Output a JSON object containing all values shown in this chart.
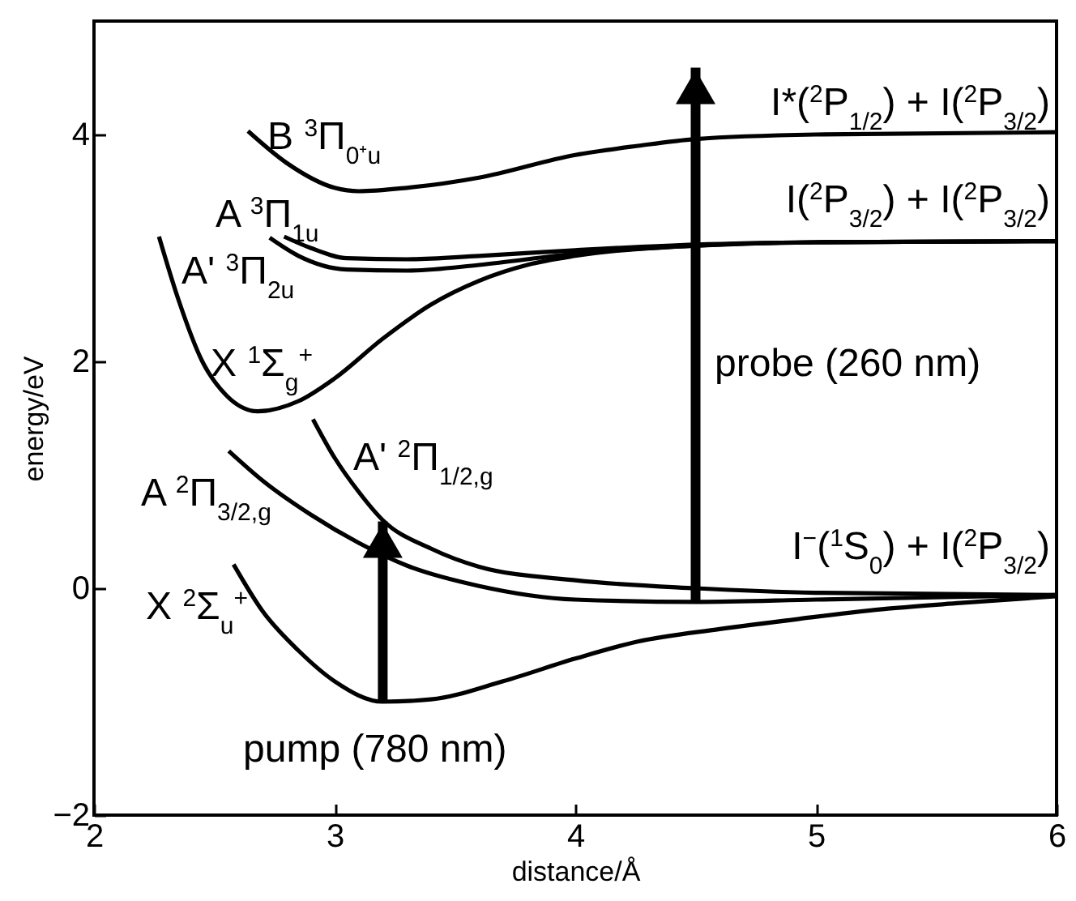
{
  "chart_data": {
    "type": "line",
    "xlabel": "distance/Å",
    "ylabel": "energy/eV",
    "xlim": [
      2,
      6
    ],
    "ylim": [
      -2,
      5
    ],
    "xticks": [
      2,
      3,
      4,
      5,
      6
    ],
    "yticks": [
      -2,
      0,
      2,
      4
    ],
    "grid": false,
    "series": [
      {
        "name": "B $^{3}$Π$_{0⁺u}$",
        "color": "#000000",
        "x": [
          2.64,
          2.8,
          3.0,
          3.1,
          3.3,
          3.6,
          4.0,
          4.26,
          4.5,
          5.0,
          6.0
        ],
        "values": [
          4.03,
          3.75,
          3.53,
          3.5,
          3.53,
          3.62,
          3.82,
          3.9,
          3.96,
          4.0,
          4.02
        ]
      },
      {
        "name": "A $^{3}$Π$_{1u}$",
        "color": "#000000",
        "x": [
          2.79,
          2.9,
          3.05,
          3.3,
          3.6,
          4.0,
          4.5,
          5.0,
          6.0
        ],
        "values": [
          3.1,
          3.0,
          2.91,
          2.9,
          2.93,
          2.98,
          3.03,
          3.05,
          3.06
        ]
      },
      {
        "name": "A' $^{3}$Π$_{2u}$",
        "color": "#000000",
        "x": [
          2.73,
          2.85,
          3.05,
          3.3,
          3.6,
          4.0,
          4.5,
          5.0,
          6.0
        ],
        "values": [
          3.09,
          2.93,
          2.81,
          2.8,
          2.85,
          2.95,
          3.02,
          3.05,
          3.06
        ]
      },
      {
        "name": "X $^{1}$Σ$_{g}$$^{+}$",
        "color": "#000000",
        "x": [
          2.27,
          2.35,
          2.45,
          2.55,
          2.68,
          2.85,
          3.0,
          3.2,
          3.4,
          3.6,
          3.8,
          4.0,
          4.5,
          5.0,
          6.0
        ],
        "values": [
          3.1,
          2.55,
          2.0,
          1.7,
          1.56,
          1.65,
          1.85,
          2.2,
          2.5,
          2.71,
          2.85,
          2.93,
          3.02,
          3.05,
          3.06
        ]
      },
      {
        "name": "A' $^{2}$Π$_{1/2,g}$",
        "color": "#000000",
        "x": [
          2.91,
          3.0,
          3.1,
          3.2,
          3.4,
          3.6,
          4.0,
          4.5,
          5.0,
          6.0
        ],
        "values": [
          1.49,
          1.15,
          0.85,
          0.6,
          0.35,
          0.19,
          0.07,
          0.0,
          -0.04,
          -0.06
        ]
      },
      {
        "name": "A $^{2}$Π$_{3/2,g}$",
        "color": "#000000",
        "x": [
          2.56,
          2.7,
          2.9,
          3.1,
          3.3,
          3.6,
          4.0,
          4.5,
          5.0,
          6.0
        ],
        "values": [
          1.21,
          0.95,
          0.65,
          0.4,
          0.2,
          0.02,
          -0.1,
          -0.12,
          -0.1,
          -0.06
        ]
      },
      {
        "name": "X $^{2}$Σ$_{u}$$^{+}$",
        "color": "#000000",
        "x": [
          2.58,
          2.7,
          2.85,
          3.0,
          3.2,
          3.4,
          3.7,
          4.0,
          4.26,
          4.6,
          4.93,
          5.3,
          5.6,
          6.0
        ],
        "values": [
          0.21,
          -0.2,
          -0.55,
          -0.82,
          -1.0,
          -0.98,
          -0.82,
          -0.62,
          -0.47,
          -0.36,
          -0.27,
          -0.18,
          -0.13,
          -0.07
        ]
      },
      {
        "color": "#000000",
        "x": [
          3.2,
          3.2
        ],
        "values": [
          -1.0,
          0.59
        ]
      },
      {
        "color": "#000000",
        "x": [
          4.5,
          4.5
        ],
        "values": [
          -0.11,
          4.59
        ]
      }
    ],
    "annotations": [
      "I*($^{2}$P$_{1/2}$) + I($^{2}$P$_{3/2}$)",
      "I($^{2}$P$_{3/2}$) + I($^{2}$P$_{3/2}$)",
      "I$^{−}$($^{1}$S$_{0}$) + I($^{2}$P$_{3/2}$)",
      "probe (260 nm)",
      "pump (780 nm)"
    ]
  }
}
